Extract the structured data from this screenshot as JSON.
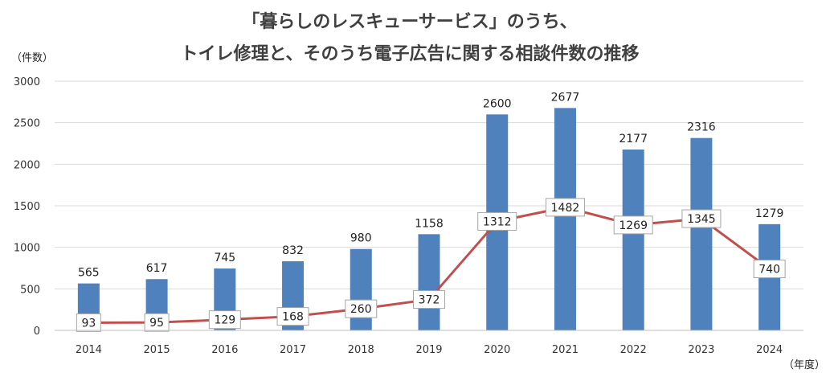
{
  "chart_data": {
    "type": "bar",
    "title_lines": [
      "「暮らしのレスキューサービス」のうち、",
      "トイレ修理と、そのうち電子広告に関する相談件数の推移"
    ],
    "ylabel": "（件数）",
    "xlabel": "（年度）",
    "ylim": [
      0,
      3000
    ],
    "yticks": [
      0,
      500,
      1000,
      1500,
      2000,
      2500,
      3000
    ],
    "grid": true,
    "categories": [
      "2014",
      "2015",
      "2016",
      "2017",
      "2018",
      "2019",
      "2020",
      "2021",
      "2022",
      "2023",
      "2024"
    ],
    "series": [
      {
        "kind": "bar",
        "values": [
          565,
          617,
          745,
          832,
          980,
          1158,
          2600,
          2677,
          2177,
          2316,
          1279
        ],
        "color": "#4f81bd"
      },
      {
        "kind": "line",
        "values": [
          93,
          95,
          129,
          168,
          260,
          372,
          1312,
          1482,
          1269,
          1345,
          740
        ],
        "color": "#c0504d"
      }
    ]
  }
}
